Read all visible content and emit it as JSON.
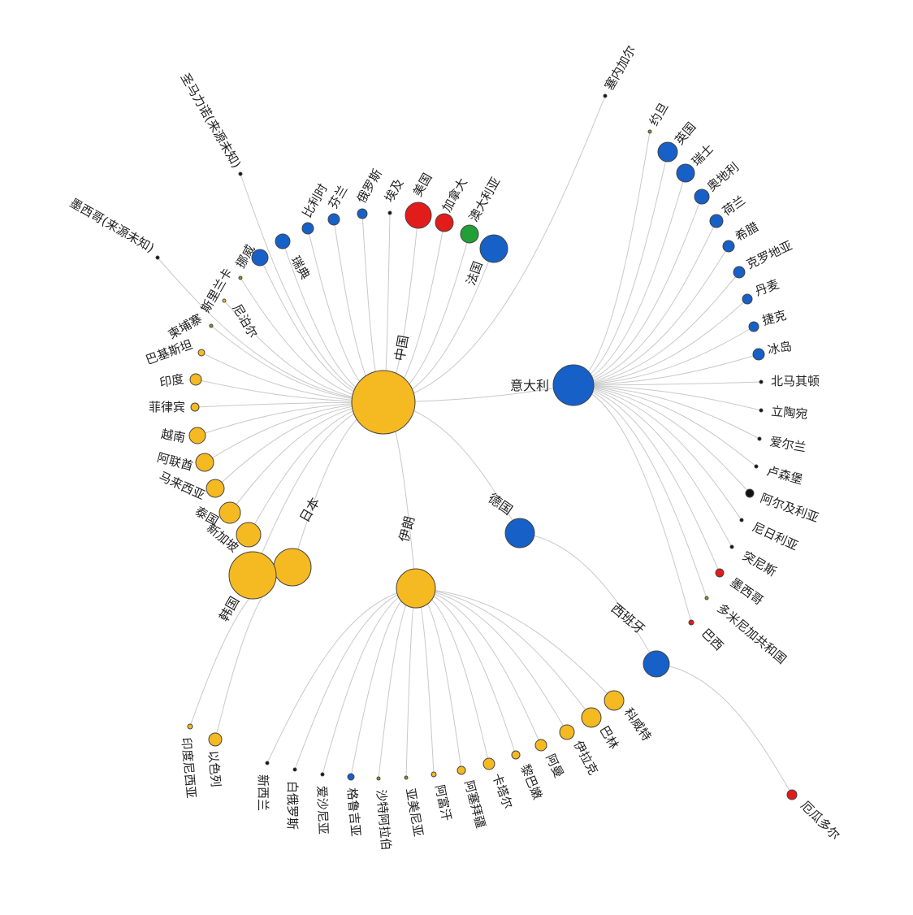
{
  "colors": {
    "yellow": "#F5B921",
    "blue": "#1660C8",
    "red": "#E21B1B",
    "green": "#21A038",
    "black": "#111111",
    "olive": "#A08A2A",
    "link": "#c9c9c9"
  },
  "labels": {
    "hub_china": "中国",
    "hub_italy": "意大利",
    "hub_germany": "德国",
    "hub_spain": "西班牙",
    "hub_iran": "伊朗",
    "hub_japan": "日本",
    "hub_korea": "韩国",
    "france": "法国",
    "australia": "澳大利亚",
    "canada": "加拿大",
    "usa": "美国",
    "egypt": "埃及",
    "russia": "俄罗斯",
    "finland": "芬兰",
    "belgium": "比利时",
    "sweden": "瑞典",
    "norway": "挪威",
    "srilanka": "斯里兰卡",
    "nepal": "尼泊尔",
    "cambodia": "柬埔寨",
    "pakistan": "巴基斯坦",
    "india": "印度",
    "philippines": "菲律宾",
    "vietnam": "越南",
    "uae": "阿联酋",
    "malaysia": "马来西亚",
    "thailand": "泰国",
    "singapore": "新加坡",
    "mexico_unknown": "墨西哥(来源未知)",
    "guatemala_unknown": "圣马力诺(来源未知)",
    "senegal": "塞内加尔",
    "jordan": "约旦",
    "uk": "英国",
    "switzerland": "瑞士",
    "austria": "奥地利",
    "netherlands": "荷兰",
    "greece": "希腊",
    "croatia": "克罗地亚",
    "denmark": "丹麦",
    "czech": "捷克",
    "iceland": "冰岛",
    "macedonia": "北马其顿",
    "lithuania": "立陶宛",
    "ireland": "爱尔兰",
    "luxembourg": "卢森堡",
    "algeria": "阿尔及利亚",
    "nigeria": "尼日利亚",
    "tunisia": "突尼斯",
    "mexico": "墨西哥",
    "dominican": "多米尼加共和国",
    "brazil": "巴西",
    "ecuador": "厄瓜多尔",
    "kuwait": "科威特",
    "bahrain": "巴林",
    "iraq": "伊拉克",
    "oman": "阿曼",
    "lebanon": "黎巴嫩",
    "qatar": "卡塔尔",
    "azerbaijan": "阿塞拜疆",
    "afghanistan": "阿富汗",
    "armenia": "亚美尼亚",
    "saudi": "沙特阿拉伯",
    "georgia": "格鲁吉亚",
    "estonia": "爱沙尼亚",
    "belarus": "白俄罗斯",
    "newzealand": "新西兰",
    "israel": "以色列",
    "indonesia": "印度尼西亚"
  }
}
